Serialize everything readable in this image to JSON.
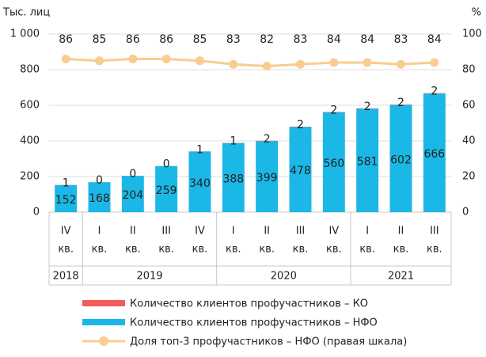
{
  "chart_data": {
    "type": "bar",
    "y_label": "Тыс. лиц",
    "y2_label": "%",
    "categories": [
      "IV",
      "I",
      "II",
      "III",
      "IV",
      "I",
      "II",
      "III",
      "IV",
      "I",
      "II",
      "III"
    ],
    "category_units": [
      "кв.",
      "кв.",
      "кв.",
      "кв.",
      "кв.",
      "кв.",
      "кв.",
      "кв.",
      "кв.",
      "кв.",
      "кв.",
      "кв."
    ],
    "groups": [
      {
        "label": "2018",
        "span": 1
      },
      {
        "label": "2019",
        "span": 4
      },
      {
        "label": "2020",
        "span": 4
      },
      {
        "label": "2021",
        "span": 3
      }
    ],
    "series": [
      {
        "name": "Количество клиентов профучастников – КО",
        "color": "#f25c5c",
        "type": "bar",
        "values": [
          1,
          0,
          0,
          0,
          1,
          1,
          2,
          2,
          2,
          2,
          2,
          2
        ]
      },
      {
        "name": "Количество клиентов профучастников – НФО",
        "color": "#1bb7e6",
        "type": "bar",
        "values": [
          152,
          168,
          204,
          259,
          340,
          388,
          399,
          478,
          560,
          581,
          602,
          666
        ]
      },
      {
        "name": "Доля топ-3 профучастников – НФО (правая шкала)",
        "color": "#f8cd90",
        "type": "line",
        "axis": "y2",
        "values": [
          86,
          85,
          86,
          86,
          85,
          83,
          82,
          83,
          84,
          84,
          83,
          84
        ]
      }
    ],
    "stack_order": [
      1,
      0
    ],
    "ylim": [
      0,
      1000
    ],
    "yticks": [
      0,
      200,
      400,
      600,
      800,
      {
        "value": 1000,
        "label": "1 000"
      }
    ],
    "y2lim": [
      0,
      100
    ],
    "y2ticks": [
      0,
      20,
      40,
      60,
      80,
      100
    ],
    "grid": true
  }
}
